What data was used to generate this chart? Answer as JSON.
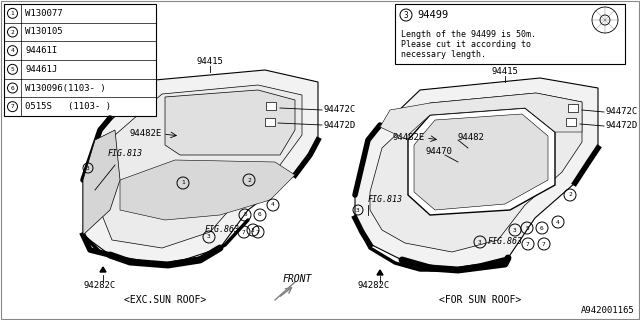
{
  "bg_color": "#ffffff",
  "line_color": "#000000",
  "text_color": "#000000",
  "legend_items": [
    {
      "num": "1",
      "part": "W130077"
    },
    {
      "num": "2",
      "part": "W130105"
    },
    {
      "num": "4",
      "part": "94461I"
    },
    {
      "num": "5",
      "part": "94461J"
    },
    {
      "num": "6",
      "part": "W130096(1103- )"
    },
    {
      "num": "7",
      "part": "0515S   (1103- )"
    }
  ],
  "note_num": "3",
  "note_part": "94499",
  "note_text_line1": "Length of the 94499 is 50m.",
  "note_text_line2": "Please cut it according to",
  "note_text_line3": "necessary length.",
  "caption_left": "<EXC.SUN ROOF>",
  "caption_right": "<FOR SUN ROOF>",
  "diagram_id": "A942001165",
  "font_size": 6.5
}
